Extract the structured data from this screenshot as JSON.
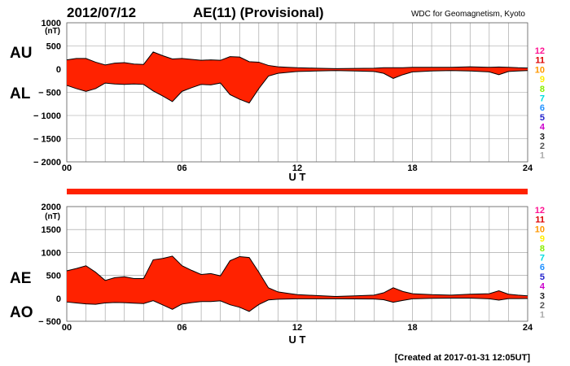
{
  "header": {
    "date": "2012/07/12",
    "title": "AE(11) (Provisional)",
    "source": "WDC for Geomagnetism, Kyoto"
  },
  "footer": {
    "created": "[Created at 2017-01-31 12:05UT]"
  },
  "colors": {
    "fill": "#ff2200",
    "outline": "#000000",
    "grid": "#999999",
    "bar": "#ff2200"
  },
  "legend": {
    "numbers": [
      "12",
      "11",
      "10",
      "9",
      "8",
      "7",
      "6",
      "5",
      "4",
      "3",
      "2",
      "1"
    ],
    "colors": [
      "#ff1493",
      "#dd0000",
      "#ff9900",
      "#ffee00",
      "#88ee00",
      "#00dddd",
      "#1e90ff",
      "#2222cc",
      "#cc00cc",
      "#222222",
      "#555555",
      "#aaaaaa"
    ]
  },
  "chart_data": [
    {
      "type": "area",
      "name": "AU/AL",
      "panel_labels": [
        "AU",
        "AL"
      ],
      "unit": "(nT)",
      "xlabel": "U T",
      "x_ticks": [
        0,
        6,
        12,
        18,
        24
      ],
      "x_tick_labels": [
        "00",
        "06",
        "12",
        "18",
        "24"
      ],
      "xlim": [
        0,
        24
      ],
      "ylim": [
        -2000,
        1000
      ],
      "y_ticks": [
        1000,
        500,
        0,
        -500,
        -1000,
        -1500,
        -2000
      ],
      "y_tick_labels": [
        "1000",
        "500",
        "0",
        "− 500",
        "− 1000",
        "− 1500",
        "− 2000"
      ],
      "grid": true,
      "x": [
        0,
        0.5,
        1,
        1.5,
        2,
        2.5,
        3,
        3.5,
        4,
        4.5,
        5,
        5.5,
        6,
        6.5,
        7,
        7.5,
        8,
        8.5,
        9,
        9.5,
        10,
        10.5,
        11,
        11.5,
        12,
        13,
        14,
        15,
        16,
        16.5,
        17,
        17.5,
        18,
        19,
        20,
        21,
        22,
        22.5,
        23,
        23.5,
        24
      ],
      "series": [
        {
          "name": "AU",
          "values": [
            200,
            230,
            230,
            150,
            90,
            130,
            140,
            110,
            100,
            370,
            290,
            220,
            230,
            210,
            190,
            200,
            190,
            270,
            260,
            160,
            150,
            80,
            50,
            40,
            30,
            20,
            10,
            15,
            20,
            30,
            30,
            30,
            40,
            40,
            40,
            50,
            40,
            45,
            40,
            30,
            25
          ]
        },
        {
          "name": "AL",
          "values": [
            -350,
            -420,
            -480,
            -420,
            -300,
            -320,
            -330,
            -320,
            -330,
            -470,
            -580,
            -700,
            -480,
            -400,
            -330,
            -340,
            -300,
            -550,
            -650,
            -730,
            -420,
            -150,
            -90,
            -70,
            -50,
            -40,
            -30,
            -40,
            -50,
            -90,
            -200,
            -120,
            -60,
            -40,
            -30,
            -40,
            -60,
            -120,
            -50,
            -40,
            -30
          ]
        }
      ]
    },
    {
      "type": "area",
      "name": "AE/AO",
      "panel_labels": [
        "AE",
        "AO"
      ],
      "unit": "(nT)",
      "xlabel": "U T",
      "x_ticks": [
        0,
        6,
        12,
        18,
        24
      ],
      "x_tick_labels": [
        "00",
        "06",
        "12",
        "18",
        "24"
      ],
      "xlim": [
        0,
        24
      ],
      "ylim": [
        -500,
        2000
      ],
      "y_ticks": [
        2000,
        1500,
        1000,
        500,
        0,
        -500
      ],
      "y_tick_labels": [
        "2000",
        "1500",
        "1000",
        "500",
        "0",
        "− 500"
      ],
      "grid": true,
      "x": [
        0,
        0.5,
        1,
        1.5,
        2,
        2.5,
        3,
        3.5,
        4,
        4.5,
        5,
        5.5,
        6,
        6.5,
        7,
        7.5,
        8,
        8.5,
        9,
        9.5,
        10,
        10.5,
        11,
        11.5,
        12,
        13,
        14,
        15,
        16,
        16.5,
        17,
        17.5,
        18,
        19,
        20,
        21,
        22,
        22.5,
        23,
        23.5,
        24
      ],
      "series": [
        {
          "name": "AE",
          "values": [
            600,
            650,
            710,
            570,
            390,
            450,
            470,
            430,
            430,
            840,
            870,
            920,
            710,
            610,
            520,
            540,
            490,
            820,
            910,
            890,
            570,
            230,
            140,
            110,
            80,
            60,
            40,
            55,
            70,
            120,
            230,
            150,
            100,
            80,
            70,
            90,
            100,
            165,
            90,
            70,
            55
          ]
        },
        {
          "name": "AO",
          "values": [
            -80,
            -100,
            -120,
            -130,
            -100,
            -90,
            -95,
            -105,
            -115,
            -50,
            -145,
            -240,
            -125,
            -95,
            -70,
            -70,
            -55,
            -140,
            -195,
            -285,
            -135,
            -35,
            -20,
            -15,
            -10,
            -10,
            -10,
            -12,
            -15,
            -30,
            -85,
            -45,
            -10,
            0,
            5,
            5,
            -10,
            -38,
            -5,
            -5,
            -3
          ]
        }
      ]
    }
  ]
}
